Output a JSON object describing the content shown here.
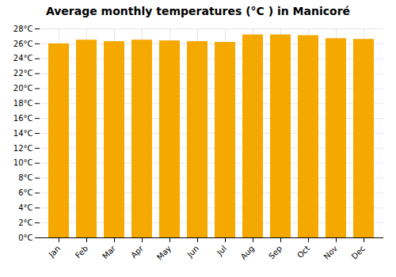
{
  "chart_data": {
    "type": "bar",
    "title": "Average monthly temperatures (°C ) in Manicoré",
    "categories": [
      "Jan",
      "Feb",
      "Mar",
      "Apr",
      "May",
      "Jun",
      "Jul",
      "Aug",
      "Sep",
      "Oct",
      "Nov",
      "Dec"
    ],
    "values": [
      26.0,
      26.5,
      26.3,
      26.5,
      26.4,
      26.3,
      26.2,
      27.2,
      27.2,
      27.1,
      26.7,
      26.6
    ],
    "color": "#F5A800",
    "ylim": [
      0,
      28
    ],
    "yticks": [
      {
        "value": 0,
        "label": "0°C"
      },
      {
        "value": 2,
        "label": "2°C"
      },
      {
        "value": 4,
        "label": "4°C"
      },
      {
        "value": 6,
        "label": "6°C"
      },
      {
        "value": 8,
        "label": "8°C"
      },
      {
        "value": 10,
        "label": "10°C"
      },
      {
        "value": 12,
        "label": "12°C"
      },
      {
        "value": 14,
        "label": "14°C"
      },
      {
        "value": 16,
        "label": "16°C"
      },
      {
        "value": 18,
        "label": "18°C"
      },
      {
        "value": 20,
        "label": "20°C"
      },
      {
        "value": 22,
        "label": "22°C"
      },
      {
        "value": 24,
        "label": "24°C"
      },
      {
        "value": 26,
        "label": "26°C"
      },
      {
        "value": 28,
        "label": "28°C"
      }
    ],
    "grid": true
  }
}
